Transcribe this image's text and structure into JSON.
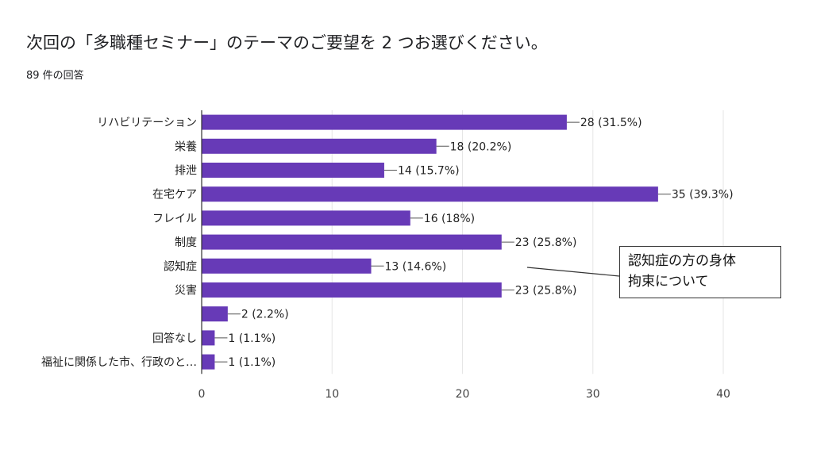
{
  "title": "次回の「多職種セミナー」のテーマのご要望を 2 つお選びください。",
  "subtitle": "89 件の回答",
  "chart_data": {
    "type": "bar",
    "orientation": "horizontal",
    "categories": [
      "リハビリテーション",
      "栄養",
      "排泄",
      "在宅ケア",
      "フレイル",
      "制度",
      "認知症",
      "災害",
      "",
      "回答なし",
      "福祉に関係した市、行政のと…"
    ],
    "values": [
      28,
      18,
      14,
      35,
      16,
      23,
      13,
      23,
      2,
      1,
      1
    ],
    "data_labels": [
      "28 (31.5%)",
      "18 (20.2%)",
      "14 (15.7%)",
      "35 (39.3%)",
      "16 (18%)",
      "23 (25.8%)",
      "13 (14.6%)",
      "23 (25.8%)",
      "2 (2.2%)",
      "1 (1.1%)",
      "1 (1.1%)"
    ],
    "xlim": [
      0,
      40
    ],
    "xticks": [
      0,
      10,
      20,
      30,
      40
    ],
    "xtick_labels": [
      "0",
      "10",
      "20",
      "30",
      "40"
    ],
    "bar_color": "#673ab7",
    "grid": true
  },
  "callout": {
    "line1": "認知症の方の身体",
    "line2": "拘束について"
  }
}
